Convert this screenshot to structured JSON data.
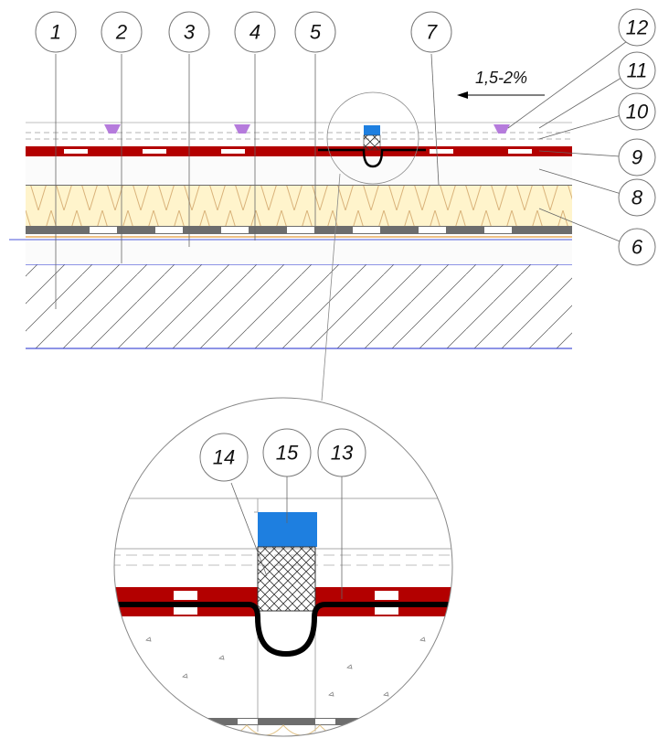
{
  "diagram": {
    "slope_label": "1,5-2%",
    "callouts": [
      "1",
      "2",
      "3",
      "4",
      "5",
      "7",
      "12",
      "11",
      "10",
      "9",
      "8",
      "6"
    ],
    "detail_callouts": [
      "14",
      "15",
      "13"
    ]
  },
  "colors": {
    "membrane_red": "#b30000",
    "insulation_fill": "#fff4cc",
    "insulation_zigzag": "#d9b27a",
    "sealant_blue": "#1e7fe0",
    "wedge_purple": "#b57bdc",
    "slab_line_blue": "#4a55d8",
    "grey_layer": "#6d6d6d"
  }
}
